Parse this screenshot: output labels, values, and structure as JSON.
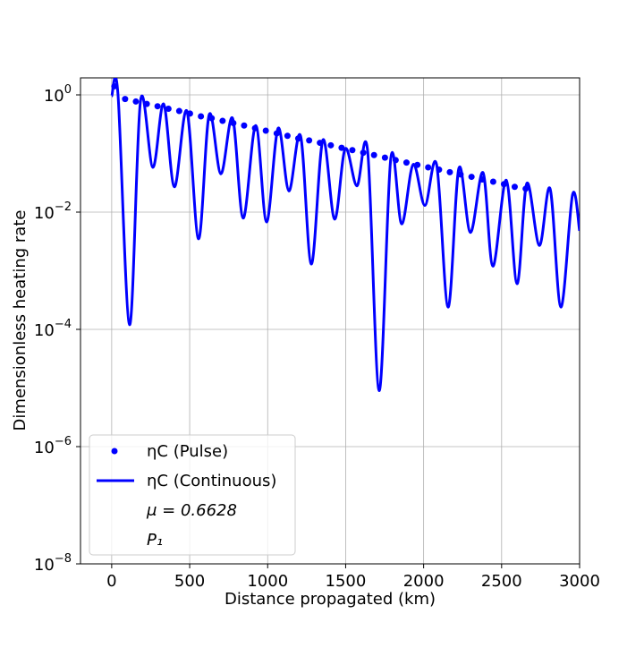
{
  "chart_data": {
    "type": "line",
    "xlabel": "Distance propagated (km)",
    "ylabel": "Dimensionless heating rate",
    "xlim": [
      -200,
      3000
    ],
    "ylim": [
      1e-08,
      1.95
    ],
    "log_y": true,
    "grid": true,
    "xticks": [
      0,
      500,
      1000,
      1500,
      2000,
      2500,
      3000
    ],
    "yticks": [
      {
        "value": 1e-08,
        "label": "10",
        "exponent": "−8"
      },
      {
        "value": 1e-06,
        "label": "10",
        "exponent": "−6"
      },
      {
        "value": 0.0001,
        "label": "10",
        "exponent": "−4"
      },
      {
        "value": 0.01,
        "label": "10",
        "exponent": "−2"
      },
      {
        "value": 1,
        "label": "10",
        "exponent": "0"
      }
    ],
    "legend": "lower left",
    "legend_extra": [
      "μ = 0.6628",
      "P₁"
    ],
    "series": [
      {
        "name": "ηC (Pulse)",
        "style": "points",
        "color": "#0000ff",
        "x": [
          17,
          86,
          155,
          225,
          294,
          364,
          433,
          502,
          572,
          641,
          711,
          780,
          849,
          919,
          988,
          1058,
          1127,
          1196,
          1266,
          1335,
          1405,
          1474,
          1543,
          1613,
          1682,
          1752,
          1821,
          1890,
          1960,
          2029,
          2099,
          2168,
          2237,
          2307,
          2376,
          2446,
          2515,
          2584,
          2654
        ],
        "values": [
          1.4,
          0.85,
          0.77,
          0.7,
          0.64,
          0.58,
          0.53,
          0.48,
          0.43,
          0.4,
          0.36,
          0.33,
          0.3,
          0.27,
          0.245,
          0.22,
          0.2,
          0.18,
          0.167,
          0.152,
          0.138,
          0.125,
          0.114,
          0.103,
          0.094,
          0.085,
          0.077,
          0.07,
          0.064,
          0.058,
          0.053,
          0.048,
          0.044,
          0.04,
          0.036,
          0.033,
          0.03,
          0.027,
          0.025
        ]
      },
      {
        "name": "ηC (Continuous)",
        "style": "line",
        "color": "#0000ff",
        "x": [
          0,
          40,
          115,
          185,
          264,
          333,
          402,
          482,
          557,
          625,
          700,
          775,
          843,
          924,
          993,
          1067,
          1136,
          1211,
          1280,
          1354,
          1429,
          1497,
          1572,
          1641,
          1715,
          1790,
          1859,
          1933,
          2008,
          2083,
          2157,
          2226,
          2300,
          2381,
          2444,
          2530,
          2599,
          2662,
          2742,
          2811,
          2880,
          2955,
          3000
        ],
        "values": [
          0.95,
          1.05,
          0.00012,
          0.8,
          0.058,
          0.7,
          0.027,
          0.53,
          0.0035,
          0.46,
          0.045,
          0.4,
          0.0079,
          0.3,
          0.0068,
          0.27,
          0.023,
          0.2,
          0.0013,
          0.17,
          0.0076,
          0.12,
          0.028,
          0.11,
          9e-06,
          0.085,
          0.0063,
          0.065,
          0.013,
          0.065,
          0.00024,
          0.056,
          0.0045,
          0.047,
          0.0012,
          0.035,
          0.0006,
          0.031,
          0.0027,
          0.025,
          0.00024,
          0.02,
          0.0048
        ]
      }
    ]
  }
}
